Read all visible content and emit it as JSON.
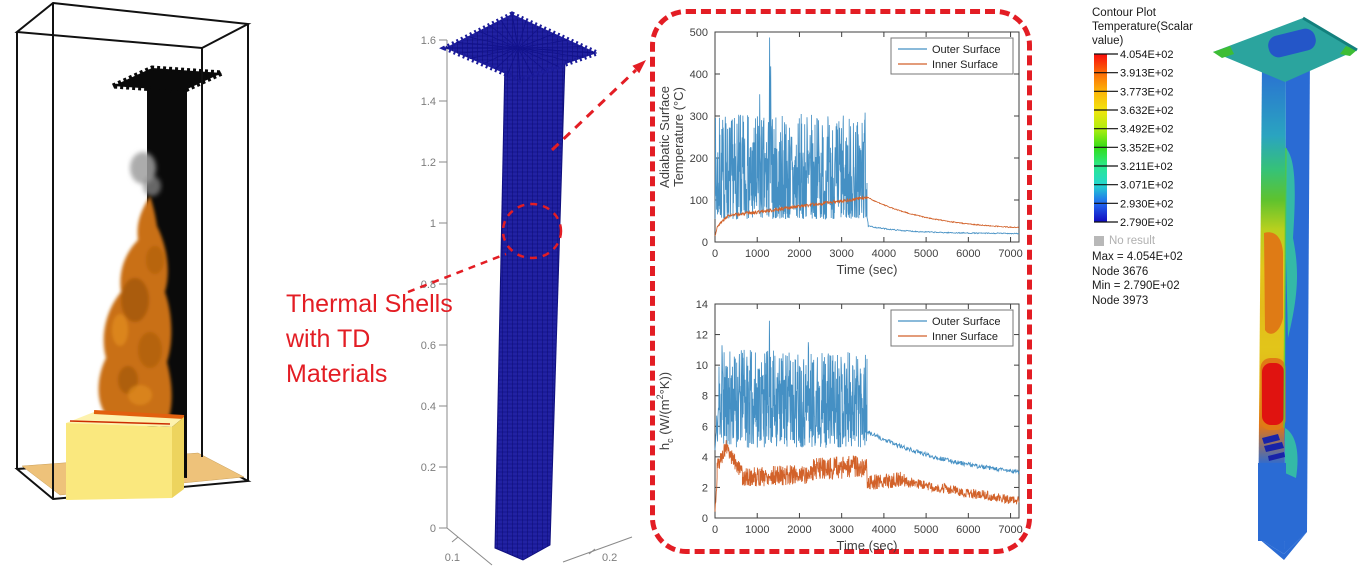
{
  "figure": {
    "background": "#ffffff"
  },
  "panels": {
    "fire_sim": {
      "flame_color": "#c96f12",
      "smoke_color": "#9d9d9d",
      "burner_color": "#fae87e",
      "burner_top_color": "#fdf2ae",
      "floor_color": "#eec27a",
      "column_color": "#0a0a0a",
      "box_line_color": "#111111"
    },
    "mesh": {
      "z_ticks": [
        "1.6",
        "1.4",
        "1.2",
        "1",
        "0.8",
        "0.6",
        "0.4",
        "0.2",
        "0"
      ],
      "x_axis_tick": "0.1",
      "y_axis_tick": "0.2",
      "mesh_color": "#1b1b9a"
    },
    "annotation": {
      "lines": [
        "Thermal Shells",
        "with TD",
        "Materials"
      ],
      "color": "#e31d24"
    }
  },
  "chart_data": [
    {
      "type": "line",
      "title": "",
      "xlabel": "Time (sec)",
      "ylabel_lines": [
        "Adiabatic Surface",
        "Temperature (°C)"
      ],
      "xlim": [
        0,
        7200
      ],
      "ylim": [
        0,
        500
      ],
      "xticks": [
        0,
        1000,
        2000,
        3000,
        4000,
        5000,
        6000,
        7000
      ],
      "yticks": [
        0,
        100,
        200,
        300,
        400,
        500
      ],
      "grid": false,
      "legend_position": "top-right",
      "legend": [
        "Outer Surface",
        "Inner Surface"
      ],
      "series": [
        {
          "name": "Outer Surface",
          "color": "#4590c4",
          "seed": 7,
          "segments": [
            {
              "t0": 0,
              "t1": 3600,
              "n": 650,
              "base": 55,
              "amp": 250,
              "pw": 1.7,
              "min": 28
            },
            {
              "t0": 3600,
              "t1": 3630,
              "n": 5,
              "mean0": 60,
              "mean1": 38,
              "noise": 3
            },
            {
              "t0": 3630,
              "t1": 7200,
              "n": 260,
              "tau": 900,
              "mean0": 38,
              "mean1": 20,
              "noise": 1.3,
              "min": 16
            }
          ],
          "spikes": [
            [
              1295,
              487
            ],
            [
              1320,
              418
            ],
            [
              1060,
              352
            ],
            [
              770,
              302
            ],
            [
              245,
              298
            ],
            [
              2180,
              297
            ],
            [
              2450,
              290
            ],
            [
              3555,
              308
            ],
            [
              1650,
              285
            ],
            [
              2950,
              272
            ]
          ]
        },
        {
          "name": "Inner Surface",
          "color": "#d2622a",
          "seed": 3,
          "segments": [
            {
              "t0": 0,
              "t1": 60,
              "n": 6,
              "mean0": 14,
              "mean1": 38,
              "noise": 2
            },
            {
              "t0": 60,
              "t1": 300,
              "n": 30,
              "mean0": 38,
              "mean1": 62,
              "noise": 3
            },
            {
              "t0": 300,
              "t1": 3600,
              "n": 380,
              "mean0": 62,
              "mean1": 106,
              "noise": 4,
              "min": 55
            },
            {
              "t0": 3600,
              "t1": 7200,
              "n": 300,
              "tau": 1500,
              "mean0": 107,
              "mean1": 27,
              "noise": 1.2
            }
          ],
          "spikes": []
        }
      ]
    },
    {
      "type": "line",
      "title": "",
      "xlabel": "Time (sec)",
      "ylabel_rich": [
        {
          "t": "h"
        },
        {
          "t": "c",
          "sub": true
        },
        {
          "t": " (W/(m"
        },
        {
          "t": "2",
          "sup": true
        },
        {
          "t": "°K))"
        }
      ],
      "xlim": [
        0,
        7200
      ],
      "ylim": [
        0,
        14
      ],
      "xticks": [
        0,
        1000,
        2000,
        3000,
        4000,
        5000,
        6000,
        7000
      ],
      "yticks": [
        0,
        2,
        4,
        6,
        8,
        10,
        12,
        14
      ],
      "grid": false,
      "legend_position": "top-right",
      "legend": [
        "Outer Surface",
        "Inner Surface"
      ],
      "series": [
        {
          "name": "Outer Surface",
          "color": "#4590c4",
          "seed": 11,
          "segments": [
            {
              "t0": 0,
              "t1": 90,
              "n": 10,
              "mean0": 4.4,
              "mean1": 7.2,
              "noise": 1.5,
              "min": 3.9
            },
            {
              "t0": 90,
              "t1": 3600,
              "n": 640,
              "base": 4.6,
              "amp": 6.4,
              "pw": 1.1,
              "min": 4.0
            },
            {
              "t0": 3600,
              "t1": 7200,
              "n": 300,
              "tau": 2400,
              "mean0": 5.65,
              "mean1": 2.25,
              "noise": 0.14
            }
          ],
          "spikes": [
            [
              1290,
              12.9
            ],
            [
              165,
              11.3
            ],
            [
              2210,
              11.5
            ],
            [
              690,
              11.0
            ],
            [
              3380,
              10.4
            ]
          ]
        },
        {
          "name": "Inner Surface",
          "color": "#d2622a",
          "seed": 5,
          "segments": [
            {
              "t0": 0,
              "t1": 50,
              "n": 6,
              "mean0": 0.3,
              "mean1": 2.6,
              "noise": 0.3
            },
            {
              "t0": 50,
              "t1": 280,
              "n": 30,
              "mean0": 3.4,
              "mean1": 4.7,
              "noise": 0.5,
              "min": 2.2
            },
            {
              "t0": 280,
              "t1": 650,
              "n": 45,
              "mean0": 4.5,
              "mean1": 2.9,
              "noise": 0.5
            },
            {
              "t0": 650,
              "t1": 2300,
              "n": 260,
              "mean0": 2.65,
              "mean1": 2.9,
              "noise": 0.65,
              "min": 1.3
            },
            {
              "t0": 2300,
              "t1": 3600,
              "n": 210,
              "mean0": 3.2,
              "mean1": 3.4,
              "noise": 0.75,
              "min": 1.5
            },
            {
              "t0": 3600,
              "t1": 4500,
              "n": 130,
              "mean0": 2.3,
              "mean1": 2.55,
              "noise": 0.5,
              "min": 1.2
            },
            {
              "t0": 4500,
              "t1": 7200,
              "n": 330,
              "mean0": 2.35,
              "mean1": 1.1,
              "noise": 0.32,
              "min": 0.5
            }
          ],
          "spikes": []
        }
      ]
    }
  ],
  "contour": {
    "title_lines": [
      "Contour Plot",
      "Temperature(Scalar value)"
    ],
    "levels": [
      "4.054E+02",
      "3.913E+02",
      "3.773E+02",
      "3.632E+02",
      "3.492E+02",
      "3.352E+02",
      "3.211E+02",
      "3.071E+02",
      "2.930E+02",
      "2.790E+02"
    ],
    "palette": [
      "#f90c0c",
      "#fb6a07",
      "#fcb409",
      "#f3e40e",
      "#b0ee0f",
      "#34dd17",
      "#2ae98e",
      "#25d6cf",
      "#2168f0",
      "#120bbf"
    ],
    "no_result_label": "No result",
    "no_result_color": "#b8b8b8",
    "stats": [
      "Max = 4.054E+02",
      "Node 3676",
      "Min = 2.790E+02",
      "Node 3973"
    ]
  }
}
